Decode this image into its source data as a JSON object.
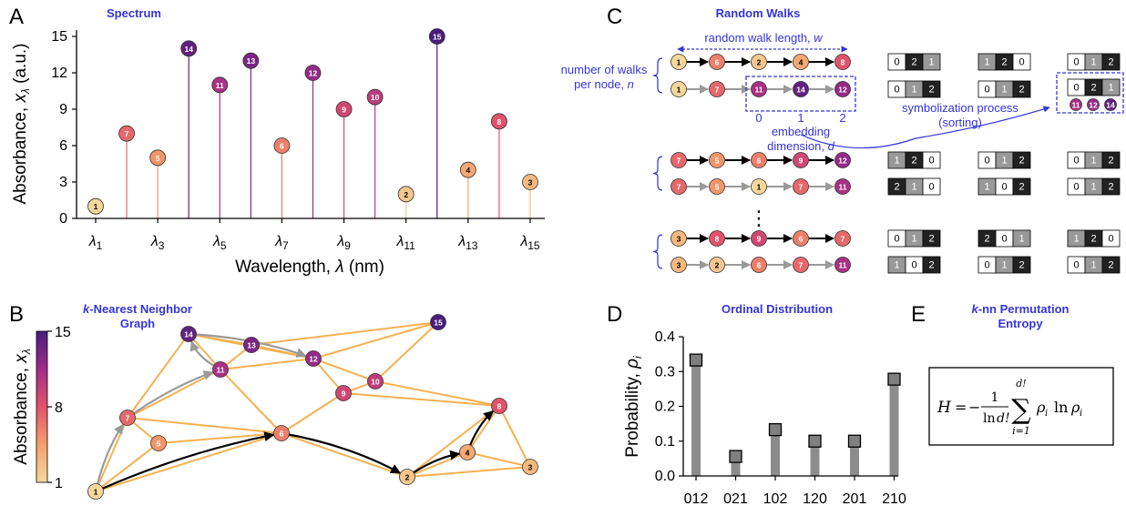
{
  "panels": {
    "a": "A",
    "b": "B",
    "c": "C",
    "d": "D",
    "e": "E"
  },
  "spectrum": {
    "title": "Spectrum",
    "ylabel_main": "Absorbance, ",
    "ylabel_sym": "x",
    "ylabel_sub": "λ",
    "ylabel_unit": " (a.u.)",
    "xlabel_main": "Wavelength, ",
    "xlabel_sym": "λ",
    "xlabel_unit": " (nm)",
    "yticks": [
      "0",
      "3",
      "6",
      "9",
      "12",
      "15"
    ],
    "xticks": [
      {
        "sym": "λ",
        "sub": "1"
      },
      {
        "sym": "λ",
        "sub": "3"
      },
      {
        "sym": "λ",
        "sub": "5"
      },
      {
        "sym": "λ",
        "sub": "7"
      },
      {
        "sym": "λ",
        "sub": "9"
      },
      {
        "sym": "λ",
        "sub": "11"
      },
      {
        "sym": "λ",
        "sub": "13"
      },
      {
        "sym": "λ",
        "sub": "15"
      }
    ],
    "ylim": [
      0,
      15
    ]
  },
  "chart_data": {
    "type": "scatter",
    "title": "Spectrum",
    "x": [
      1,
      2,
      3,
      4,
      5,
      6,
      7,
      8,
      9,
      10,
      11,
      12,
      13,
      14,
      15
    ],
    "values": [
      1,
      7,
      5,
      14,
      11,
      13,
      6,
      12,
      9,
      10,
      2,
      15,
      4,
      8,
      3
    ],
    "xlabel": "Wavelength, λ (nm)",
    "ylabel": "Absorbance, xλ (a.u.)",
    "ylim": [
      0,
      15
    ]
  },
  "knn": {
    "title_k": "k",
    "title_rest": "-Nearest Neighbor",
    "title_line2": "Graph",
    "cbar_label_main": "Absorbance, ",
    "cbar_label_sym": "x",
    "cbar_label_sub": "λ",
    "cbar_ticks": [
      "15",
      "8",
      "1"
    ]
  },
  "walks": {
    "title": "Random Walks",
    "length_label_main": "random walk length, ",
    "length_label_sym": "w",
    "nwalks_line1": "number of walks",
    "nwalks_line2_main": "per node, ",
    "nwalks_line2_sym": "n",
    "embed_idx": [
      "0",
      "1",
      "2"
    ],
    "embed_line1": "embedding",
    "embed_line2_main": "dimension, ",
    "embed_line2_sym": "d",
    "symb_line1": "symbolization process",
    "symb_line2": "(sorting)",
    "ellipsis": "⋮",
    "rows": [
      [
        1,
        6,
        2,
        4,
        8
      ],
      [
        1,
        7,
        11,
        14,
        12
      ],
      [
        7,
        5,
        6,
        9,
        12
      ],
      [
        7,
        5,
        1,
        7,
        11
      ],
      [
        3,
        8,
        9,
        6,
        7
      ],
      [
        3,
        2,
        6,
        7,
        11
      ]
    ],
    "sym_rows": [
      [
        [
          0,
          2,
          1
        ],
        [
          1,
          2,
          0
        ],
        [
          0,
          1,
          2
        ]
      ],
      [
        [
          0,
          1,
          2
        ],
        [
          0,
          1,
          2
        ],
        [
          0,
          2,
          1
        ]
      ],
      [
        [
          1,
          2,
          0
        ],
        [
          0,
          1,
          2
        ],
        [
          0,
          1,
          2
        ]
      ],
      [
        [
          2,
          1,
          0
        ],
        [
          1,
          0,
          2
        ],
        [
          0,
          1,
          2
        ]
      ],
      [
        [
          0,
          1,
          2
        ],
        [
          2,
          0,
          1
        ],
        [
          1,
          2,
          0
        ]
      ],
      [
        [
          1,
          0,
          2
        ],
        [
          0,
          1,
          2
        ],
        [
          0,
          1,
          2
        ]
      ]
    ],
    "example_nodes": [
      11,
      12,
      14
    ]
  },
  "ordinal": {
    "title": "Ordinal Distribution",
    "ylabel_main": "Probability, ",
    "ylabel_sym": "ρ",
    "ylabel_sub": "i",
    "yticks": [
      "0.0",
      "0.1",
      "0.2",
      "0.3",
      "0.4"
    ],
    "categories": [
      "012",
      "021",
      "102",
      "120",
      "201",
      "210"
    ],
    "values": [
      0.333,
      0.056,
      0.133,
      0.1,
      0.1,
      0.278
    ]
  },
  "entropy": {
    "title_k": "k",
    "title_rest": "-nn Permutation",
    "title_line2": "Entropy",
    "H": "H",
    "eq": "=",
    "minus": "−",
    "one": "1",
    "ln": "ln",
    "dfact": "d!",
    "sum": "∑",
    "sum_top": "d!",
    "sum_bottom": "i=1",
    "rho": "ρ",
    "sub_i": "i"
  }
}
